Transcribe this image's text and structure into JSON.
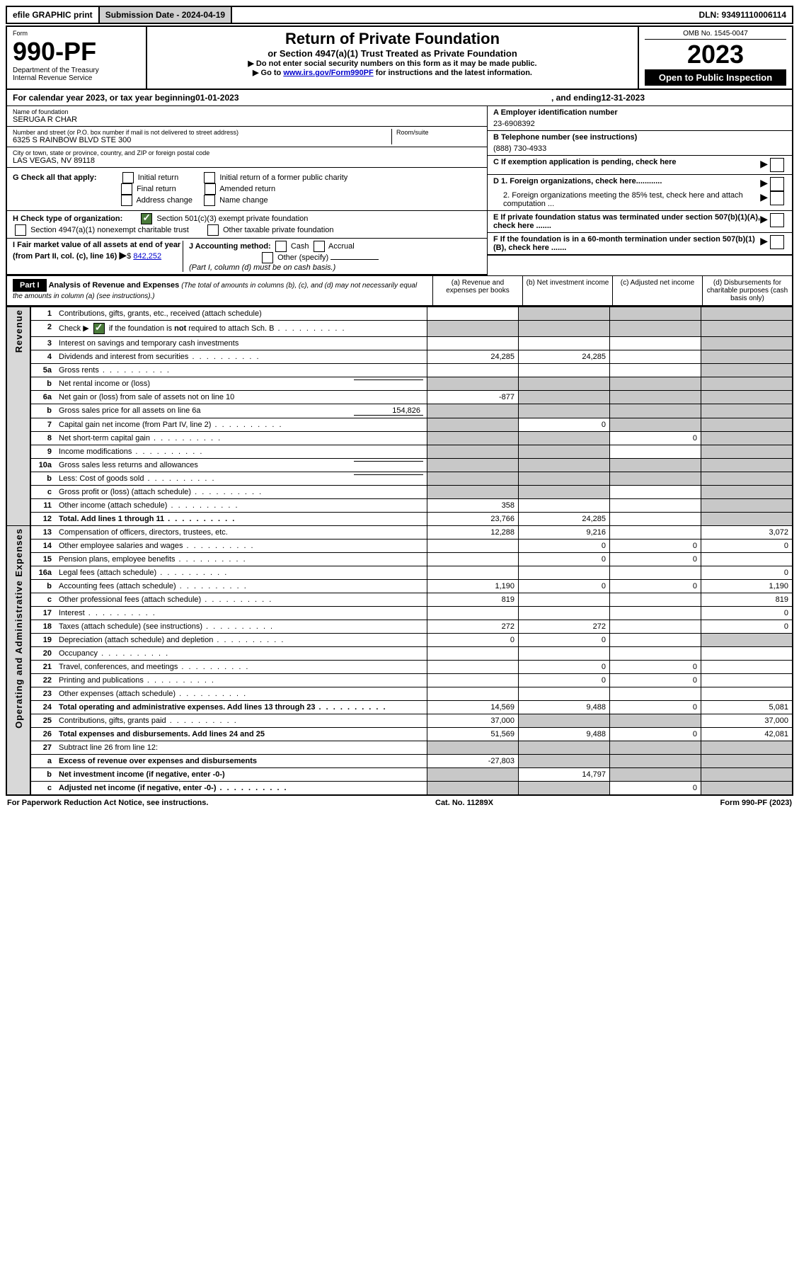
{
  "topbar": {
    "efile": "efile GRAPHIC print",
    "submission": "Submission Date - 2024-04-19",
    "dln": "DLN: 93491110006114"
  },
  "header": {
    "form_label": "Form",
    "form_number": "990-PF",
    "dept1": "Department of the Treasury",
    "dept2": "Internal Revenue Service",
    "title": "Return of Private Foundation",
    "subtitle": "or Section 4947(a)(1) Trust Treated as Private Foundation",
    "note1": "▶ Do not enter social security numbers on this form as it may be made public.",
    "note2_pre": "▶ Go to ",
    "note2_link": "www.irs.gov/Form990PF",
    "note2_post": " for instructions and the latest information.",
    "omb": "OMB No. 1545-0047",
    "year": "2023",
    "open": "Open to Public Inspection"
  },
  "calyear": {
    "pre": "For calendar year 2023, or tax year beginning ",
    "begin": "01-01-2023",
    "mid": " , and ending ",
    "end": "12-31-2023"
  },
  "entity": {
    "name_label": "Name of foundation",
    "name": "SERUGA R CHAR",
    "addr_label": "Number and street (or P.O. box number if mail is not delivered to street address)",
    "room_label": "Room/suite",
    "addr": "6325 S RAINBOW BLVD STE 300",
    "city_label": "City or town, state or province, country, and ZIP or foreign postal code",
    "city": "LAS VEGAS, NV  89118",
    "ein_label": "A Employer identification number",
    "ein": "23-6908392",
    "tel_label": "B Telephone number (see instructions)",
    "tel": "(888) 730-4933",
    "c_label": "C If exemption application is pending, check here",
    "d1": "D 1. Foreign organizations, check here............",
    "d2": "2. Foreign organizations meeting the 85% test, check here and attach computation ...",
    "e": "E  If private foundation status was terminated under section 507(b)(1)(A), check here .......",
    "f": "F  If the foundation is in a 60-month termination under section 507(b)(1)(B), check here .......",
    "g_label": "G Check all that apply:",
    "g_opts": [
      "Initial return",
      "Final return",
      "Address change",
      "Initial return of a former public charity",
      "Amended return",
      "Name change"
    ],
    "h_label": "H Check type of organization:",
    "h1": "Section 501(c)(3) exempt private foundation",
    "h2": "Section 4947(a)(1) nonexempt charitable trust",
    "h3": "Other taxable private foundation",
    "i_label": "I Fair market value of all assets at end of year (from Part II, col. (c), line 16)",
    "i_val": "842,252",
    "j_label": "J Accounting method:",
    "j_opts": [
      "Cash",
      "Accrual"
    ],
    "j_other": "Other (specify)",
    "j_note": "(Part I, column (d) must be on cash basis.)"
  },
  "part1": {
    "label": "Part I",
    "title": "Analysis of Revenue and Expenses",
    "title_note": " (The total of amounts in columns (b), (c), and (d) may not necessarily equal the amounts in column (a) (see instructions).)",
    "cols": [
      "(a)  Revenue and expenses per books",
      "(b)  Net investment income",
      "(c)  Adjusted net income",
      "(d)  Disbursements for charitable purposes (cash basis only)"
    ]
  },
  "sideLabels": {
    "revenue": "Revenue",
    "expenses": "Operating and Administrative Expenses"
  },
  "rows": [
    {
      "n": "1",
      "d": "Contributions, gifts, grants, etc., received (attach schedule)",
      "a": "",
      "b": "g",
      "c": "g",
      "e": "g"
    },
    {
      "n": "2",
      "d": "Check ▶ [x] if the foundation is not required to attach Sch. B",
      "dots": true,
      "a": "g",
      "b": "g",
      "c": "g",
      "e": "g"
    },
    {
      "n": "3",
      "d": "Interest on savings and temporary cash investments",
      "a": "",
      "b": "",
      "c": "",
      "e": "g"
    },
    {
      "n": "4",
      "d": "Dividends and interest from securities",
      "dots": true,
      "a": "24,285",
      "b": "24,285",
      "c": "",
      "e": "g"
    },
    {
      "n": "5a",
      "d": "Gross rents",
      "dots": true,
      "a": "",
      "b": "",
      "c": "",
      "e": "g"
    },
    {
      "n": "b",
      "d": "Net rental income or (loss)",
      "inline": true,
      "a": "g",
      "b": "g",
      "c": "g",
      "e": "g"
    },
    {
      "n": "6a",
      "d": "Net gain or (loss) from sale of assets not on line 10",
      "a": "-877",
      "b": "g",
      "c": "g",
      "e": "g"
    },
    {
      "n": "b",
      "d": "Gross sales price for all assets on line 6a",
      "inline": true,
      "iv": "154,826",
      "a": "g",
      "b": "g",
      "c": "g",
      "e": "g"
    },
    {
      "n": "7",
      "d": "Capital gain net income (from Part IV, line 2)",
      "dots": true,
      "a": "g",
      "b": "0",
      "c": "g",
      "e": "g"
    },
    {
      "n": "8",
      "d": "Net short-term capital gain",
      "dots": true,
      "a": "g",
      "b": "g",
      "c": "0",
      "e": "g"
    },
    {
      "n": "9",
      "d": "Income modifications",
      "dots": true,
      "a": "g",
      "b": "g",
      "c": "",
      "e": "g"
    },
    {
      "n": "10a",
      "d": "Gross sales less returns and allowances",
      "inline": true,
      "a": "g",
      "b": "g",
      "c": "g",
      "e": "g"
    },
    {
      "n": "b",
      "d": "Less: Cost of goods sold",
      "dots": true,
      "inline": true,
      "a": "g",
      "b": "g",
      "c": "g",
      "e": "g"
    },
    {
      "n": "c",
      "d": "Gross profit or (loss) (attach schedule)",
      "dots": true,
      "a": "g",
      "b": "g",
      "c": "",
      "e": "g"
    },
    {
      "n": "11",
      "d": "Other income (attach schedule)",
      "dots": true,
      "a": "358",
      "b": "",
      "c": "",
      "e": "g"
    },
    {
      "n": "12",
      "d": "Total. Add lines 1 through 11",
      "bold": true,
      "dots": true,
      "a": "23,766",
      "b": "24,285",
      "c": "",
      "e": "g"
    }
  ],
  "exprows": [
    {
      "n": "13",
      "d": "Compensation of officers, directors, trustees, etc.",
      "a": "12,288",
      "b": "9,216",
      "c": "",
      "e": "3,072"
    },
    {
      "n": "14",
      "d": "Other employee salaries and wages",
      "dots": true,
      "a": "",
      "b": "0",
      "c": "0",
      "e": "0"
    },
    {
      "n": "15",
      "d": "Pension plans, employee benefits",
      "dots": true,
      "a": "",
      "b": "0",
      "c": "0",
      "e": ""
    },
    {
      "n": "16a",
      "d": "Legal fees (attach schedule)",
      "dots": true,
      "a": "",
      "b": "",
      "c": "",
      "e": "0"
    },
    {
      "n": "b",
      "d": "Accounting fees (attach schedule)",
      "dots": true,
      "a": "1,190",
      "b": "0",
      "c": "0",
      "e": "1,190"
    },
    {
      "n": "c",
      "d": "Other professional fees (attach schedule)",
      "dots": true,
      "a": "819",
      "b": "",
      "c": "",
      "e": "819"
    },
    {
      "n": "17",
      "d": "Interest",
      "dots": true,
      "a": "",
      "b": "",
      "c": "",
      "e": "0"
    },
    {
      "n": "18",
      "d": "Taxes (attach schedule) (see instructions)",
      "dots": true,
      "a": "272",
      "b": "272",
      "c": "",
      "e": "0"
    },
    {
      "n": "19",
      "d": "Depreciation (attach schedule) and depletion",
      "dots": true,
      "a": "0",
      "b": "0",
      "c": "",
      "e": "g"
    },
    {
      "n": "20",
      "d": "Occupancy",
      "dots": true,
      "a": "",
      "b": "",
      "c": "",
      "e": ""
    },
    {
      "n": "21",
      "d": "Travel, conferences, and meetings",
      "dots": true,
      "a": "",
      "b": "0",
      "c": "0",
      "e": ""
    },
    {
      "n": "22",
      "d": "Printing and publications",
      "dots": true,
      "a": "",
      "b": "0",
      "c": "0",
      "e": ""
    },
    {
      "n": "23",
      "d": "Other expenses (attach schedule)",
      "dots": true,
      "a": "",
      "b": "",
      "c": "",
      "e": ""
    },
    {
      "n": "24",
      "d": "Total operating and administrative expenses. Add lines 13 through 23",
      "bold": true,
      "dots": true,
      "a": "14,569",
      "b": "9,488",
      "c": "0",
      "e": "5,081"
    },
    {
      "n": "25",
      "d": "Contributions, gifts, grants paid",
      "dots": true,
      "a": "37,000",
      "b": "g",
      "c": "g",
      "e": "37,000"
    },
    {
      "n": "26",
      "d": "Total expenses and disbursements. Add lines 24 and 25",
      "bold": true,
      "a": "51,569",
      "b": "9,488",
      "c": "0",
      "e": "42,081"
    },
    {
      "n": "27",
      "d": "Subtract line 26 from line 12:",
      "a": "g",
      "b": "g",
      "c": "g",
      "e": "g"
    },
    {
      "n": "a",
      "d": "Excess of revenue over expenses and disbursements",
      "bold": true,
      "a": "-27,803",
      "b": "g",
      "c": "g",
      "e": "g"
    },
    {
      "n": "b",
      "d": "Net investment income (if negative, enter -0-)",
      "bold": true,
      "a": "g",
      "b": "14,797",
      "c": "g",
      "e": "g"
    },
    {
      "n": "c",
      "d": "Adjusted net income (if negative, enter -0-)",
      "bold": true,
      "dots": true,
      "a": "g",
      "b": "g",
      "c": "0",
      "e": "g"
    }
  ],
  "footer": {
    "left": "For Paperwork Reduction Act Notice, see instructions.",
    "mid": "Cat. No. 11289X",
    "right": "Form 990-PF (2023)"
  }
}
